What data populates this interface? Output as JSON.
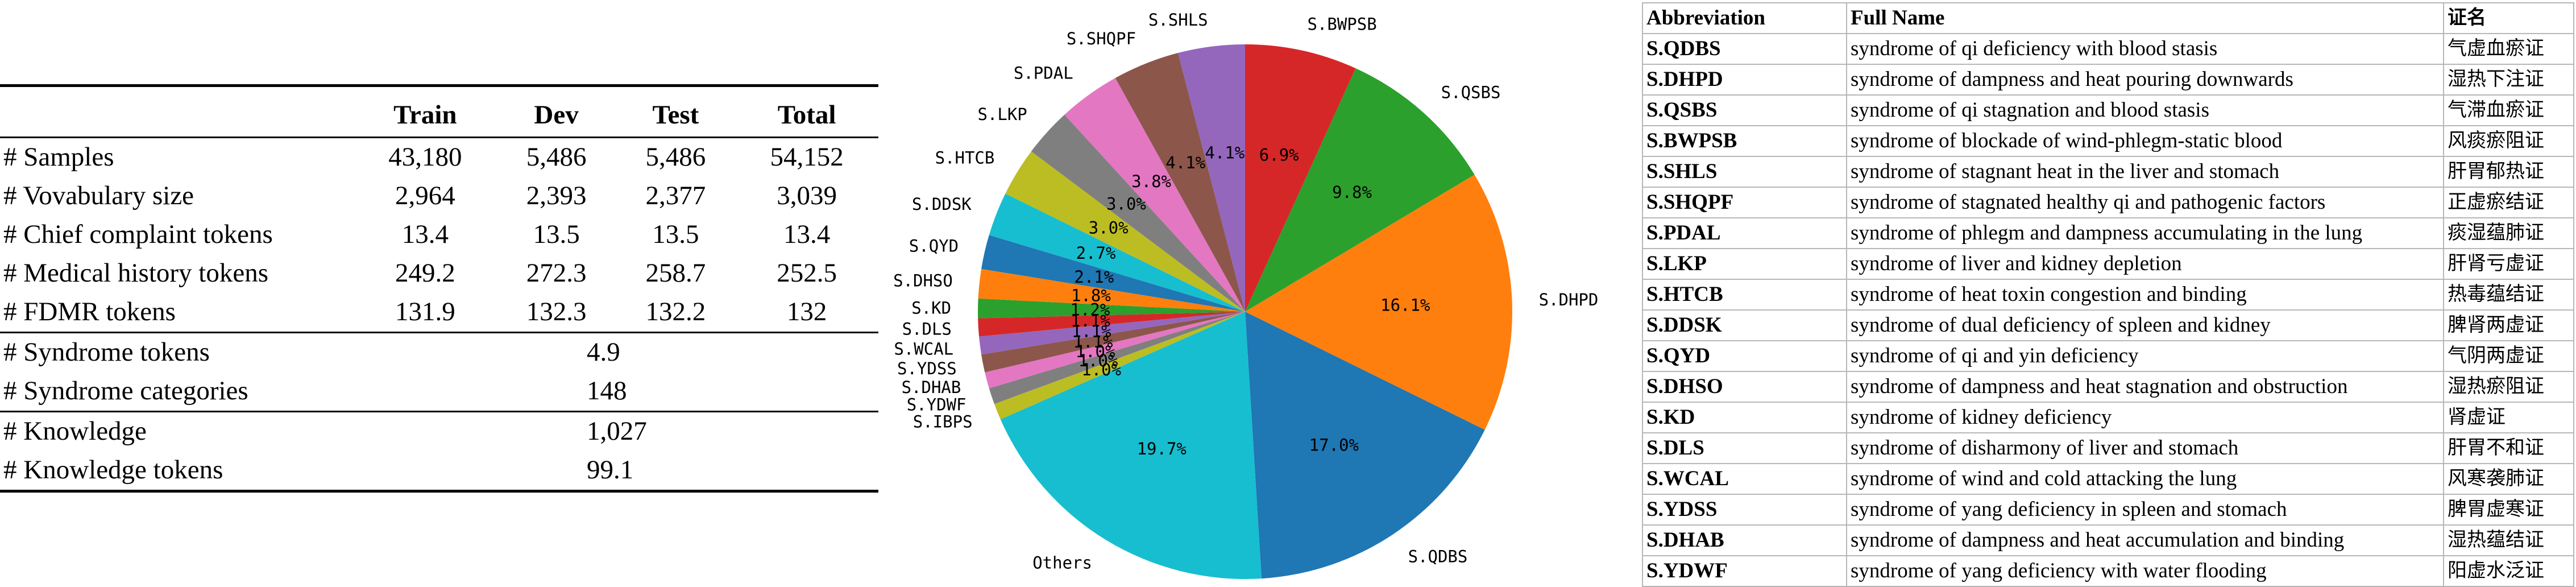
{
  "stats_table": {
    "headers": [
      "",
      "Train",
      "Dev",
      "Test",
      "Total"
    ],
    "rows": [
      [
        "# Samples",
        "43,180",
        "5,486",
        "5,486",
        "54,152"
      ],
      [
        "# Vovabulary size",
        "2,964",
        "2,393",
        "2,377",
        "3,039"
      ],
      [
        "# Chief complaint tokens",
        "13.4",
        "13.5",
        "13.5",
        "13.4"
      ],
      [
        "# Medical history tokens",
        "249.2",
        "272.3",
        "258.7",
        "252.5"
      ],
      [
        "# FDMR tokens",
        "131.9",
        "132.3",
        "132.2",
        "132"
      ]
    ],
    "syndrome_rows": [
      [
        "# Syndrome tokens",
        "4.9"
      ],
      [
        "# Syndrome categories",
        "148"
      ]
    ],
    "knowledge_rows": [
      [
        "# Knowledge",
        "1,027"
      ],
      [
        "# Knowledge tokens",
        "99.1"
      ]
    ]
  },
  "chart_data": {
    "type": "pie",
    "start_angle_deg": 90,
    "direction": "clockwise",
    "slices": [
      {
        "label": "S.BWPSB",
        "value": 6.9,
        "pct": "6.9%",
        "color": "#d62728"
      },
      {
        "label": "S.QSBS",
        "value": 9.8,
        "pct": "9.8%",
        "color": "#2ca02c"
      },
      {
        "label": "S.DHPD",
        "value": 16.1,
        "pct": "16.1%",
        "color": "#ff7f0e"
      },
      {
        "label": "S.QDBS",
        "value": 17.0,
        "pct": "17.0%",
        "color": "#1f77b4"
      },
      {
        "label": "Others",
        "value": 19.7,
        "pct": "19.7%",
        "color": "#17becf"
      },
      {
        "label": "S.IBPS",
        "value": 1.0,
        "pct": "1.0%",
        "color": "#bcbd22"
      },
      {
        "label": "S.YDWF",
        "value": 1.0,
        "pct": "1.0%",
        "color": "#7f7f7f"
      },
      {
        "label": "S.DHAB",
        "value": 1.0,
        "pct": "1.0%",
        "color": "#e377c2"
      },
      {
        "label": "S.YDSS",
        "value": 1.1,
        "pct": "1.1%",
        "color": "#8c564b"
      },
      {
        "label": "S.WCAL",
        "value": 1.1,
        "pct": "1.1%",
        "color": "#9467bd"
      },
      {
        "label": "S.DLS",
        "value": 1.1,
        "pct": "1.1%",
        "color": "#d62728"
      },
      {
        "label": "S.KD",
        "value": 1.2,
        "pct": "1.2%",
        "color": "#2ca02c"
      },
      {
        "label": "S.DHSO",
        "value": 1.8,
        "pct": "1.8%",
        "color": "#ff7f0e"
      },
      {
        "label": "S.QYD",
        "value": 2.1,
        "pct": "2.1%",
        "color": "#1f77b4"
      },
      {
        "label": "S.DDSK",
        "value": 2.7,
        "pct": "2.7%",
        "color": "#17becf"
      },
      {
        "label": "S.HTCB",
        "value": 3.0,
        "pct": "3.0%",
        "color": "#bcbd22"
      },
      {
        "label": "S.LKP",
        "value": 3.0,
        "pct": "3.0%",
        "color": "#7f7f7f"
      },
      {
        "label": "S.PDAL",
        "value": 3.8,
        "pct": "3.8%",
        "color": "#e377c2"
      },
      {
        "label": "S.SHQPF",
        "value": 4.1,
        "pct": "4.1%",
        "color": "#8c564b"
      },
      {
        "label": "S.SHLS",
        "value": 4.1,
        "pct": "4.1%",
        "color": "#9467bd"
      }
    ]
  },
  "abbr_table": {
    "headers": [
      "Abbreviation",
      "Full Name",
      "证名"
    ],
    "rows": [
      [
        "S.QDBS",
        "syndrome of qi deficiency with blood stasis",
        "气虚血瘀证"
      ],
      [
        "S.DHPD",
        "syndrome of dampness and heat pouring downwards",
        "湿热下注证"
      ],
      [
        "S.QSBS",
        "syndrome of qi stagnation and blood stasis",
        "气滞血瘀证"
      ],
      [
        "S.BWPSB",
        "syndrome of blockade of wind-phlegm-static blood",
        "风痰瘀阻证"
      ],
      [
        "S.SHLS",
        "syndrome of stagnant heat in the liver and stomach",
        "肝胃郁热证"
      ],
      [
        "S.SHQPF",
        "syndrome of stagnated healthy qi and pathogenic factors",
        "正虚瘀结证"
      ],
      [
        "S.PDAL",
        "syndrome of phlegm and dampness accumulating in the lung",
        "痰湿蕴肺证"
      ],
      [
        "S.LKP",
        "syndrome of liver and kidney depletion",
        "肝肾亏虚证"
      ],
      [
        "S.HTCB",
        "syndrome of heat toxin congestion and binding",
        "热毒蕴结证"
      ],
      [
        "S.DDSK",
        "syndrome of dual deficiency of spleen and kidney",
        "脾肾两虚证"
      ],
      [
        "S.QYD",
        "syndrome of qi and yin deficiency",
        "气阴两虚证"
      ],
      [
        "S.DHSO",
        "syndrome of dampness and heat stagnation and obstruction",
        "湿热瘀阻证"
      ],
      [
        "S.KD",
        "syndrome of kidney deficiency",
        "肾虚证"
      ],
      [
        "S.DLS",
        "syndrome of disharmony of liver and stomach",
        "肝胃不和证"
      ],
      [
        "S.WCAL",
        "syndrome of wind and cold attacking the lung",
        "风寒袭肺证"
      ],
      [
        "S.YDSS",
        "syndrome of yang deficiency in  spleen and stomach",
        "脾胃虚寒证"
      ],
      [
        "S.DHAB",
        "syndrome of dampness and heat accumulation and binding",
        "湿热蕴结证"
      ],
      [
        "S.YDWF",
        "syndrome of yang deficiency with water flooding",
        "阳虚水泛证"
      ]
    ]
  }
}
